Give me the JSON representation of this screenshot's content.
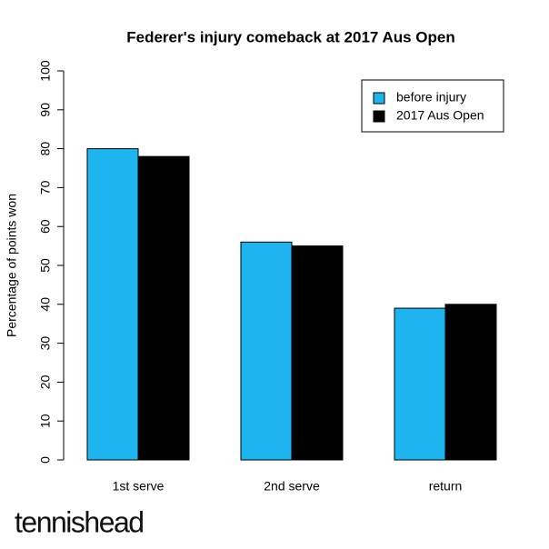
{
  "chart_data": {
    "type": "grouped-bar",
    "title": "Federer's injury comeback at 2017 Aus Open",
    "ylabel": "Percentage of points won",
    "categories": [
      "1st serve",
      "2nd serve",
      "return"
    ],
    "series": [
      {
        "name": "before injury",
        "color": "#1eb4f0",
        "values": [
          80,
          56,
          39
        ]
      },
      {
        "name": "2017 Aus Open",
        "color": "#000000",
        "values": [
          78,
          55,
          40
        ]
      }
    ],
    "ylim": [
      0,
      100
    ],
    "yticks": [
      0,
      10,
      20,
      30,
      40,
      50,
      60,
      70,
      80,
      90,
      100
    ],
    "legend": "top-right",
    "watermark": "tennishead"
  }
}
